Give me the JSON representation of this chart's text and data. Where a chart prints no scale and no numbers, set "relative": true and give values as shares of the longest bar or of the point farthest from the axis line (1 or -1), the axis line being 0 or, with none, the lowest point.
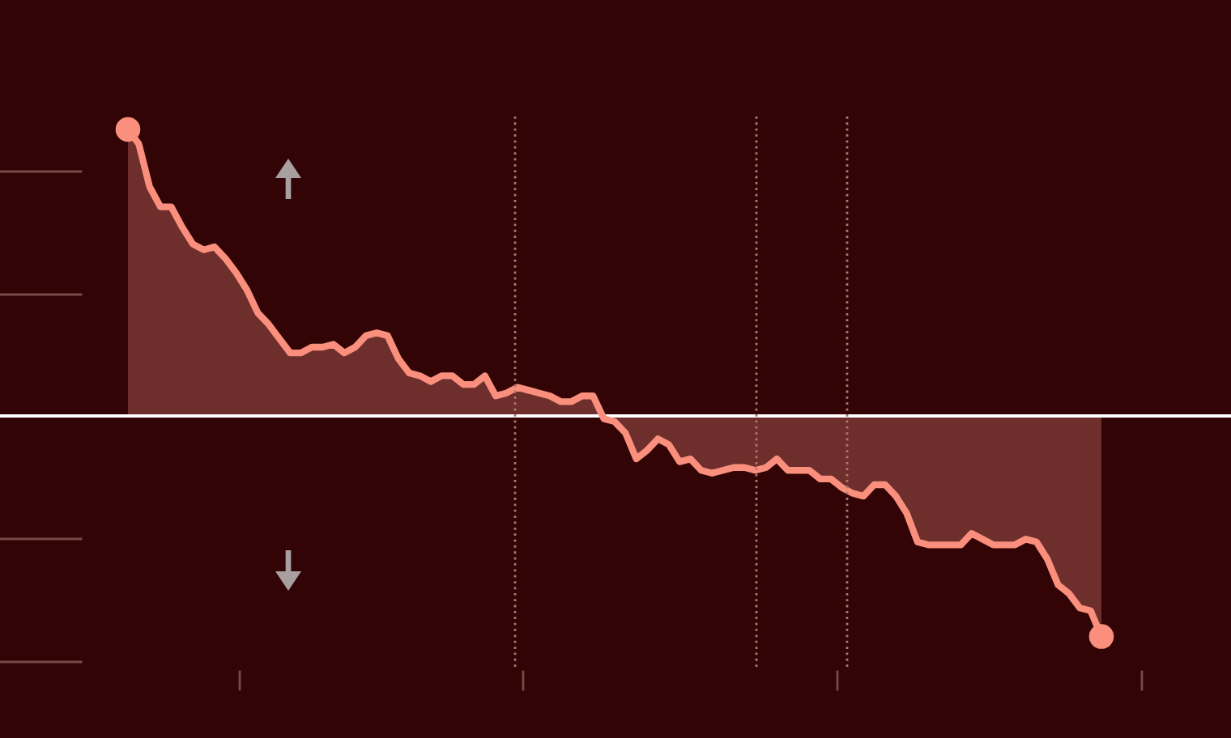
{
  "chart_data": {
    "type": "area",
    "relative": true,
    "categories": [
      null,
      null,
      null,
      null,
      null,
      null,
      null,
      null,
      null,
      null,
      null,
      null,
      null,
      null,
      null,
      null,
      null,
      null,
      null,
      null,
      null,
      null,
      null,
      null,
      null,
      null,
      null,
      null,
      null,
      null,
      null,
      null,
      null,
      null,
      null,
      null,
      null,
      null,
      null,
      null,
      null,
      null,
      null,
      null,
      null,
      null,
      null,
      null,
      null,
      null,
      null,
      null,
      null,
      null,
      null,
      null,
      null,
      null,
      null,
      null,
      null,
      null,
      null,
      null,
      null,
      null,
      null,
      null,
      null,
      null,
      null,
      null,
      null,
      null,
      null,
      null,
      null,
      null,
      null,
      null,
      null,
      null,
      null,
      null,
      null,
      null,
      null,
      null,
      null,
      null,
      null
    ],
    "series": [
      {
        "color": "#f98f7c",
        "values": [
          1.0,
          0.95,
          0.8,
          0.73,
          0.73,
          0.66,
          0.6,
          0.58,
          0.59,
          0.55,
          0.5,
          0.44,
          0.36,
          0.32,
          0.27,
          0.22,
          0.22,
          0.24,
          0.24,
          0.25,
          0.22,
          0.24,
          0.28,
          0.29,
          0.28,
          0.2,
          0.15,
          0.14,
          0.12,
          0.14,
          0.14,
          0.11,
          0.11,
          0.14,
          0.07,
          0.08,
          0.1,
          0.09,
          0.08,
          0.07,
          0.05,
          0.05,
          0.07,
          0.07,
          -0.01,
          -0.02,
          -0.06,
          -0.15,
          -0.12,
          -0.08,
          -0.1,
          -0.16,
          -0.15,
          -0.19,
          -0.2,
          -0.19,
          -0.18,
          -0.18,
          -0.19,
          -0.18,
          -0.15,
          -0.19,
          -0.19,
          -0.19,
          -0.22,
          -0.22,
          -0.25,
          -0.27,
          -0.28,
          -0.24,
          -0.24,
          -0.28,
          -0.34,
          -0.44,
          -0.45,
          -0.45,
          -0.45,
          -0.45,
          -0.41,
          -0.43,
          -0.45,
          -0.45,
          -0.45,
          -0.43,
          -0.44,
          -0.5,
          -0.59,
          -0.62,
          -0.67,
          -0.68,
          -0.77
        ]
      }
    ]
  }
}
